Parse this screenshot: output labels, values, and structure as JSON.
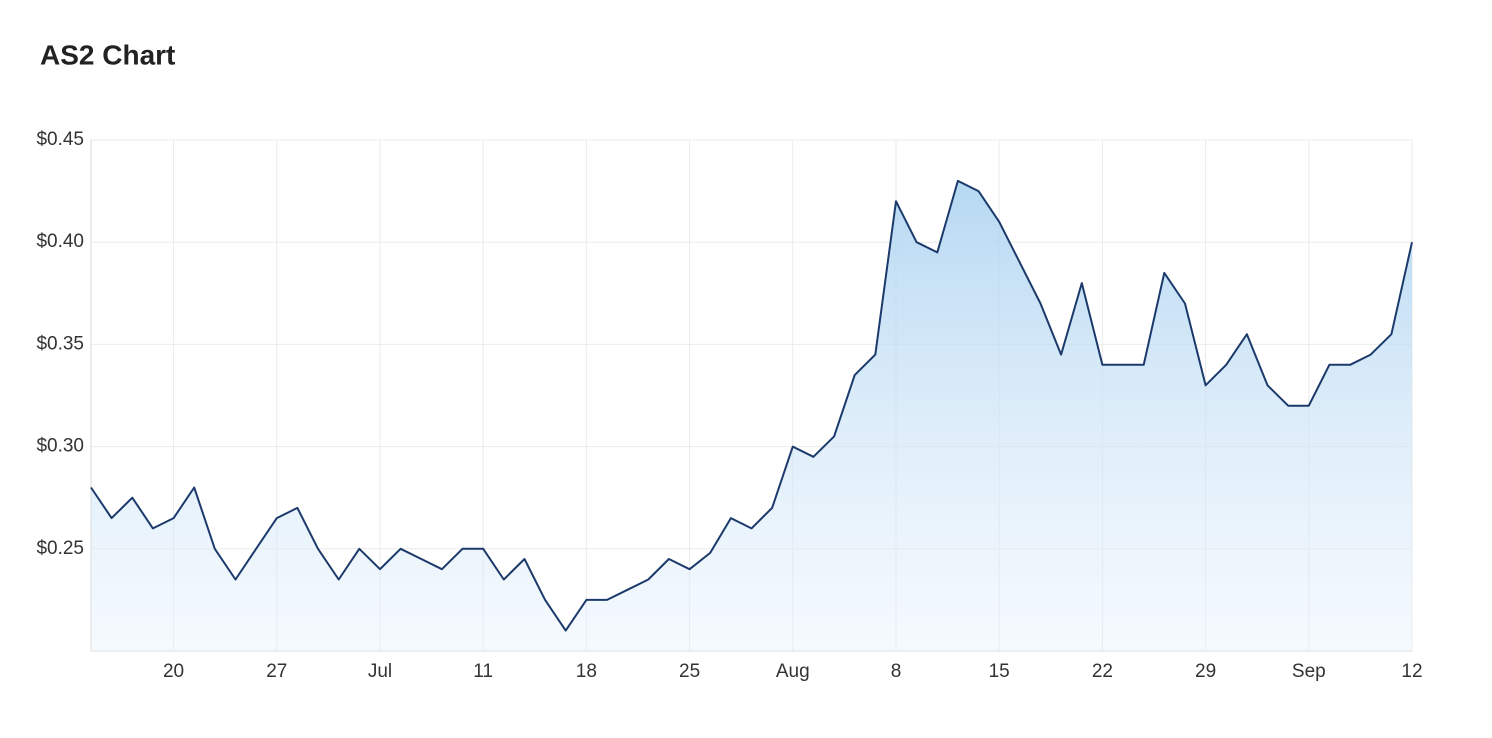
{
  "chart_data": {
    "type": "area",
    "title": "AS2 Chart",
    "categories": [
      null,
      null,
      null,
      null,
      "20",
      null,
      null,
      null,
      null,
      "27",
      null,
      null,
      null,
      null,
      "Jul",
      null,
      null,
      null,
      null,
      "11",
      null,
      null,
      null,
      null,
      "18",
      null,
      null,
      null,
      null,
      "25",
      null,
      null,
      null,
      null,
      "Aug",
      null,
      null,
      null,
      null,
      "8",
      null,
      null,
      null,
      null,
      "15",
      null,
      null,
      null,
      null,
      "22",
      null,
      null,
      null,
      null,
      "29",
      null,
      null,
      null,
      null,
      "Sep",
      null,
      null,
      null,
      null,
      "12"
    ],
    "values": [
      0.28,
      0.265,
      0.275,
      0.26,
      0.265,
      0.28,
      0.25,
      0.235,
      0.25,
      0.265,
      0.27,
      0.25,
      0.235,
      0.25,
      0.24,
      0.25,
      0.245,
      0.24,
      0.25,
      0.25,
      0.235,
      0.245,
      0.225,
      0.21,
      0.225,
      0.225,
      0.23,
      0.235,
      0.245,
      0.24,
      0.248,
      0.265,
      0.26,
      0.27,
      0.3,
      0.295,
      0.305,
      0.335,
      0.345,
      0.42,
      0.4,
      0.395,
      0.43,
      0.425,
      0.41,
      0.39,
      0.37,
      0.345,
      0.38,
      0.34,
      0.34,
      0.34,
      0.385,
      0.37,
      0.33,
      0.34,
      0.355,
      0.33,
      0.32,
      0.32,
      0.34,
      0.34,
      0.345,
      0.355,
      0.4
    ],
    "color": "#1b3a6b",
    "ylim": [
      0.2,
      0.45
    ],
    "yticks": [
      {
        "value": 0.25,
        "label": "$0.25"
      },
      {
        "value": 0.3,
        "label": "$0.30"
      },
      {
        "value": 0.35,
        "label": "$0.35"
      },
      {
        "value": 0.4,
        "label": "$0.40"
      },
      {
        "value": 0.45,
        "label": "$0.45"
      }
    ],
    "grid": true
  }
}
